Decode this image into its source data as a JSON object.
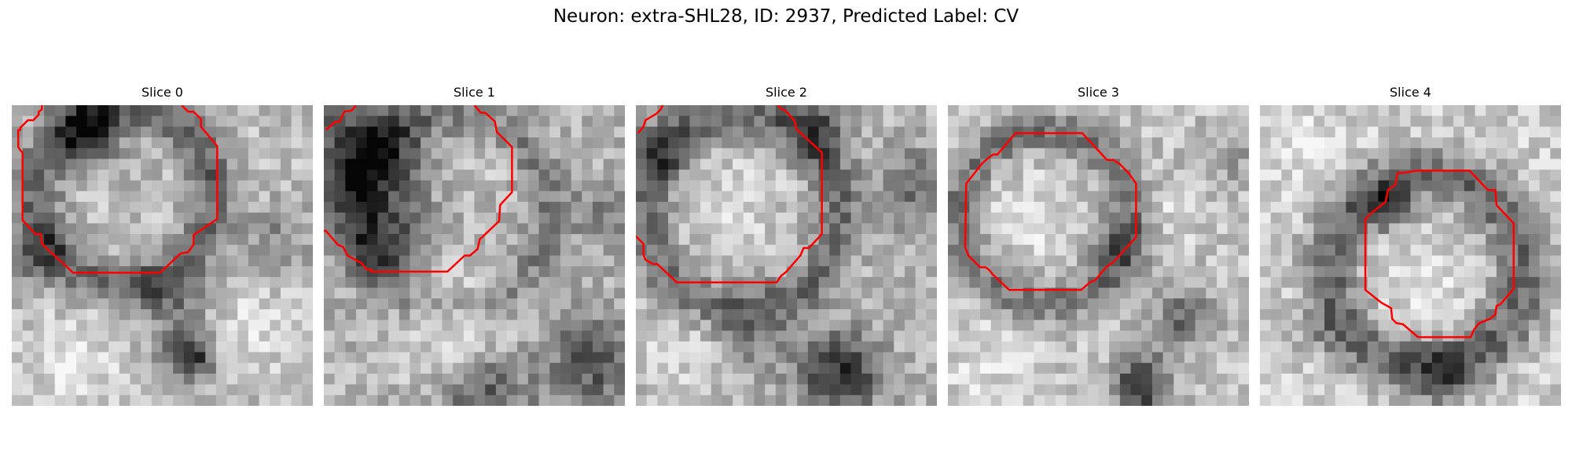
{
  "figure": {
    "title": "Neuron: extra-SHL28, ID: 2937, Predicted Label: CV"
  },
  "panels": [
    {
      "title": "Slice 0",
      "overlay_color": "#ff0000"
    },
    {
      "title": "Slice 1",
      "overlay_color": "#ff0000"
    },
    {
      "title": "Slice 2",
      "overlay_color": "#ff0000"
    },
    {
      "title": "Slice 3",
      "overlay_color": "#ff0000"
    },
    {
      "title": "Slice 4",
      "overlay_color": "#ff0000"
    }
  ]
}
